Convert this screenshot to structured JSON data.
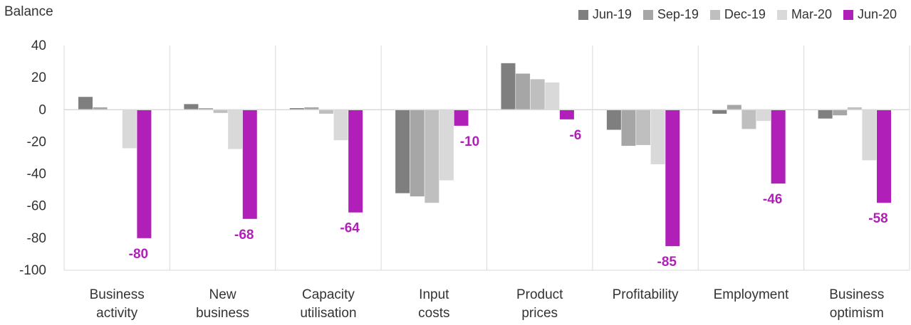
{
  "chart_data": {
    "type": "bar",
    "ylabel": "Balance",
    "ylim": [
      -100,
      40
    ],
    "yticks": [
      40,
      20,
      0,
      -20,
      -40,
      -60,
      -80,
      -100
    ],
    "grid": "vertical separators between categories",
    "legend_position": "top-right",
    "categories": [
      [
        "Business",
        "activity"
      ],
      [
        "New",
        "business"
      ],
      [
        "Capacity",
        "utilisation"
      ],
      [
        "Input",
        "costs"
      ],
      [
        "Product",
        "prices"
      ],
      [
        "Profitability"
      ],
      [
        "Employment"
      ],
      [
        "Business",
        "optimism"
      ]
    ],
    "series": [
      {
        "name": "Jun-19",
        "color": "#7f7f7f",
        "values": [
          8,
          3.5,
          1,
          -52,
          29,
          -12.5,
          -2.5,
          -5.5
        ]
      },
      {
        "name": "Sep-19",
        "color": "#a6a6a6",
        "values": [
          1.5,
          1,
          1.5,
          -54,
          22.5,
          -22.5,
          3,
          -3.5
        ]
      },
      {
        "name": "Dec-19",
        "color": "#bfbfbf",
        "values": [
          0,
          -2,
          -2.5,
          -58,
          19,
          -22,
          -12,
          1.5
        ]
      },
      {
        "name": "Mar-20",
        "color": "#d9d9d9",
        "values": [
          -24,
          -24.5,
          -19,
          -44,
          17,
          -34,
          -7,
          -31.5
        ]
      },
      {
        "name": "Jun-20",
        "color": "#b020b8",
        "values": [
          -80,
          -68,
          -64,
          -10,
          -6,
          -85,
          -46,
          -58
        ],
        "labels": [
          "-80",
          "-68",
          "-64",
          "-10",
          "-6",
          "-85",
          "-46",
          "-58"
        ]
      }
    ]
  }
}
